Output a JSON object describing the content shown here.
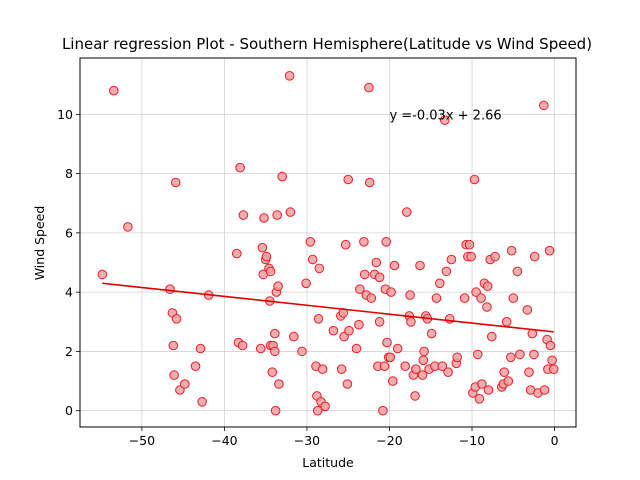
{
  "chart_data": {
    "type": "scatter",
    "title": "Linear regression Plot - Southern Hemisphere(Latitude vs Wind Speed)",
    "xlabel": "Latitude",
    "ylabel": "Wind Speed",
    "xlim": [
      -57.5,
      2.6
    ],
    "ylim": [
      -0.55,
      11.9
    ],
    "xticks": [
      -50,
      -40,
      -30,
      -20,
      -10,
      0
    ],
    "yticks": [
      0,
      2,
      4,
      6,
      8,
      10
    ],
    "grid": true,
    "annotation": {
      "text": "y =-0.03x + 2.66",
      "x": -20,
      "y": 10
    },
    "regression": {
      "x": [
        -54.8,
        -0.1
      ],
      "y": [
        4.3,
        2.66
      ]
    },
    "colors": {
      "marker_face": "#f0a0a0",
      "marker_edge": "#e8202a",
      "line": "#e00000",
      "grid": "#d3d3d3"
    },
    "points": [
      [
        -54.8,
        4.6
      ],
      [
        -53.4,
        10.8
      ],
      [
        -51.7,
        6.2
      ],
      [
        -46.6,
        4.1
      ],
      [
        -46.3,
        3.3
      ],
      [
        -46.2,
        2.2
      ],
      [
        -46.1,
        1.2
      ],
      [
        -45.9,
        7.7
      ],
      [
        -45.8,
        3.1
      ],
      [
        -45.4,
        0.7
      ],
      [
        -44.8,
        0.9
      ],
      [
        -43.5,
        1.5
      ],
      [
        -42.9,
        2.1
      ],
      [
        -42.7,
        0.3
      ],
      [
        -41.9,
        3.9
      ],
      [
        -38.5,
        5.3
      ],
      [
        -38.3,
        2.3
      ],
      [
        -38.1,
        8.2
      ],
      [
        -37.8,
        2.2
      ],
      [
        -37.7,
        6.6
      ],
      [
        -35.6,
        2.1
      ],
      [
        -35.4,
        5.5
      ],
      [
        -35.3,
        4.6
      ],
      [
        -35.2,
        6.5
      ],
      [
        -35.0,
        5.1
      ],
      [
        -34.9,
        5.2
      ],
      [
        -34.6,
        4.8
      ],
      [
        -34.5,
        3.7
      ],
      [
        -34.4,
        2.2
      ],
      [
        -34.4,
        4.7
      ],
      [
        -34.2,
        1.3
      ],
      [
        -34.1,
        2.2
      ],
      [
        -33.9,
        2.0
      ],
      [
        -33.9,
        2.6
      ],
      [
        -33.8,
        0.0
      ],
      [
        -33.7,
        4.0
      ],
      [
        -33.6,
        6.6
      ],
      [
        -33.5,
        4.2
      ],
      [
        -33.4,
        0.9
      ],
      [
        -33.0,
        7.9
      ],
      [
        -32.1,
        11.3
      ],
      [
        -32.0,
        6.7
      ],
      [
        -31.6,
        2.5
      ],
      [
        -30.6,
        2.0
      ],
      [
        -30.1,
        4.3
      ],
      [
        -29.6,
        5.7
      ],
      [
        -29.3,
        5.1
      ],
      [
        -28.9,
        1.5
      ],
      [
        -28.8,
        0.5
      ],
      [
        -28.7,
        0.0
      ],
      [
        -28.6,
        3.1
      ],
      [
        -28.5,
        4.8
      ],
      [
        -28.3,
        0.3
      ],
      [
        -28.1,
        1.4
      ],
      [
        -27.8,
        0.15
      ],
      [
        -26.8,
        2.7
      ],
      [
        -25.9,
        3.2
      ],
      [
        -25.8,
        1.4
      ],
      [
        -25.6,
        3.3
      ],
      [
        -25.5,
        2.5
      ],
      [
        -25.3,
        5.6
      ],
      [
        -25.1,
        0.9
      ],
      [
        -25.0,
        7.8
      ],
      [
        -24.9,
        2.7
      ],
      [
        -24.0,
        2.1
      ],
      [
        -23.7,
        2.9
      ],
      [
        -23.6,
        4.1
      ],
      [
        -23.1,
        5.7
      ],
      [
        -23.0,
        4.6
      ],
      [
        -22.8,
        3.9
      ],
      [
        -22.5,
        10.9
      ],
      [
        -22.4,
        7.7
      ],
      [
        -22.2,
        3.8
      ],
      [
        -21.8,
        4.6
      ],
      [
        -21.6,
        5.0
      ],
      [
        -21.4,
        1.5
      ],
      [
        -21.2,
        3.0
      ],
      [
        -21.2,
        4.5
      ],
      [
        -20.8,
        0.0
      ],
      [
        -20.6,
        1.5
      ],
      [
        -20.5,
        4.1
      ],
      [
        -20.4,
        5.7
      ],
      [
        -20.3,
        2.3
      ],
      [
        -20.1,
        1.8
      ],
      [
        -19.9,
        1.8
      ],
      [
        -19.8,
        4.0
      ],
      [
        -19.6,
        1.0
      ],
      [
        -19.4,
        4.9
      ],
      [
        -19.0,
        2.1
      ],
      [
        -18.1,
        1.5
      ],
      [
        -17.9,
        6.7
      ],
      [
        -17.6,
        3.2
      ],
      [
        -17.5,
        3.9
      ],
      [
        -17.4,
        3.0
      ],
      [
        -17.1,
        1.2
      ],
      [
        -16.9,
        0.5
      ],
      [
        -16.8,
        1.4
      ],
      [
        -16.3,
        4.9
      ],
      [
        -16.0,
        1.2
      ],
      [
        -15.9,
        1.7
      ],
      [
        -15.8,
        2.0
      ],
      [
        -15.6,
        3.2
      ],
      [
        -15.4,
        3.1
      ],
      [
        -15.2,
        1.4
      ],
      [
        -14.9,
        2.6
      ],
      [
        -14.5,
        1.5
      ],
      [
        -14.3,
        3.8
      ],
      [
        -13.9,
        4.3
      ],
      [
        -13.6,
        1.5
      ],
      [
        -13.3,
        9.8
      ],
      [
        -13.1,
        4.7
      ],
      [
        -12.9,
        1.3
      ],
      [
        -12.7,
        3.1
      ],
      [
        -12.5,
        5.1
      ],
      [
        -11.9,
        1.6
      ],
      [
        -11.8,
        1.8
      ],
      [
        -10.9,
        3.8
      ],
      [
        -10.7,
        5.6
      ],
      [
        -10.5,
        5.2
      ],
      [
        -10.3,
        5.6
      ],
      [
        -10.1,
        5.2
      ],
      [
        -9.9,
        0.6
      ],
      [
        -9.7,
        7.8
      ],
      [
        -9.6,
        0.8
      ],
      [
        -9.5,
        4.0
      ],
      [
        -9.3,
        1.9
      ],
      [
        -9.1,
        0.4
      ],
      [
        -8.9,
        3.8
      ],
      [
        -8.8,
        0.9
      ],
      [
        -8.5,
        4.3
      ],
      [
        -8.2,
        3.5
      ],
      [
        -8.1,
        4.2
      ],
      [
        -8.0,
        0.7
      ],
      [
        -7.8,
        5.1
      ],
      [
        -7.6,
        2.5
      ],
      [
        -7.2,
        5.2
      ],
      [
        -6.4,
        0.8
      ],
      [
        -6.2,
        0.9
      ],
      [
        -6.1,
        1.3
      ],
      [
        -5.8,
        3.0
      ],
      [
        -5.6,
        1.0
      ],
      [
        -5.3,
        1.8
      ],
      [
        -5.2,
        5.4
      ],
      [
        -5.0,
        3.8
      ],
      [
        -4.5,
        4.7
      ],
      [
        -4.2,
        1.9
      ],
      [
        -3.3,
        3.4
      ],
      [
        -3.1,
        1.3
      ],
      [
        -2.9,
        0.7
      ],
      [
        -2.7,
        2.6
      ],
      [
        -2.5,
        1.9
      ],
      [
        -2.4,
        5.2
      ],
      [
        -2.0,
        0.6
      ],
      [
        -1.3,
        10.3
      ],
      [
        -1.2,
        0.7
      ],
      [
        -0.9,
        2.4
      ],
      [
        -0.8,
        1.4
      ],
      [
        -0.6,
        5.4
      ],
      [
        -0.5,
        2.2
      ],
      [
        -0.3,
        1.7
      ],
      [
        -0.1,
        1.4
      ]
    ]
  }
}
